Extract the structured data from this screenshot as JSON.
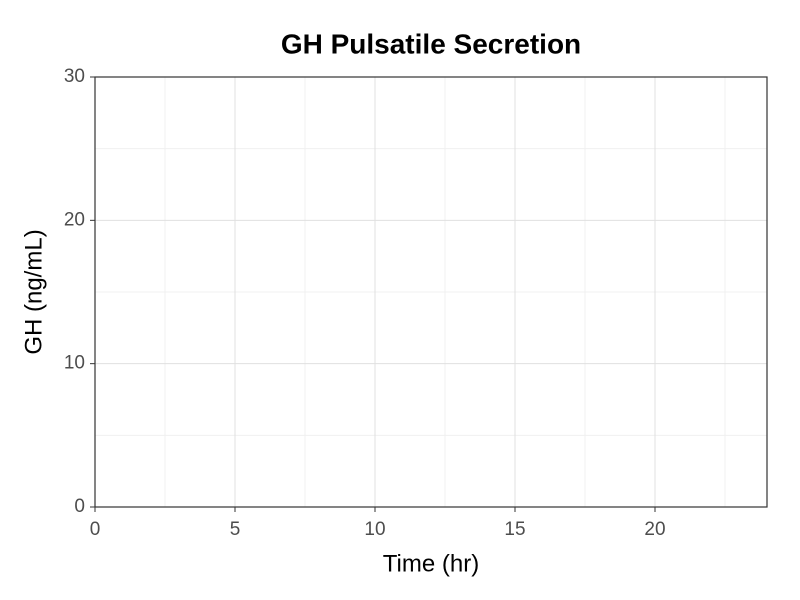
{
  "chart_data": {
    "type": "line",
    "title": "GH Pulsatile Secretion",
    "x_label": "Time (hr)",
    "y_label": "GH (ng/mL)",
    "x": [],
    "series": [],
    "xlim": [
      0,
      24
    ],
    "ylim": [
      0,
      30
    ],
    "xticks": [
      0,
      5,
      10,
      15,
      20
    ],
    "yticks": [
      0,
      10,
      20,
      30
    ],
    "x_minor_grid": [
      2.5,
      7.5,
      12.5,
      17.5,
      22.5
    ],
    "y_minor_grid": [
      5,
      15,
      25
    ],
    "grid": true
  }
}
